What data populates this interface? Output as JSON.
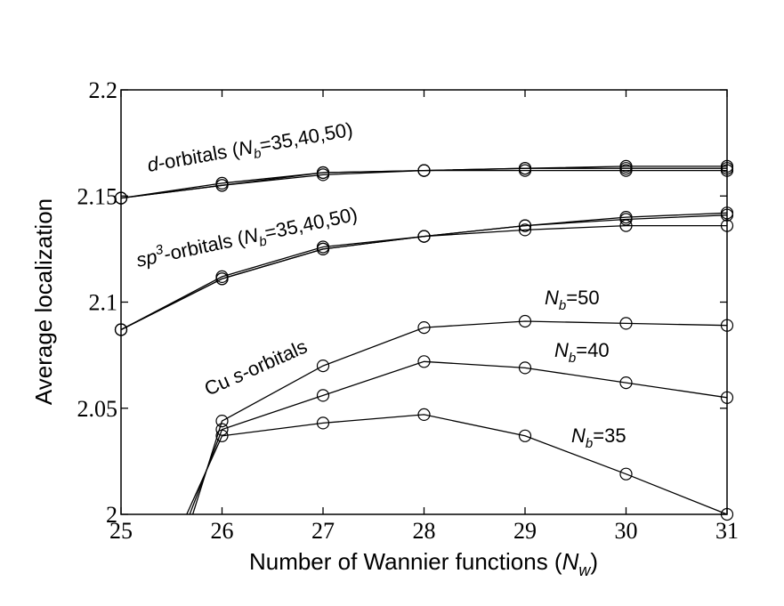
{
  "chart_data": {
    "type": "line",
    "xlabel": {
      "main": "Number of Wannier functions (",
      "var": "N",
      "sub": "w",
      "close": ")"
    },
    "ylabel": "Average localization",
    "xlim": [
      25,
      31
    ],
    "ylim": [
      2.0,
      2.2
    ],
    "xticks": [
      25,
      26,
      27,
      28,
      29,
      30,
      31
    ],
    "yticks": [
      2.0,
      2.05,
      2.1,
      2.15,
      2.2
    ],
    "xtick_labels": [
      "25",
      "26",
      "27",
      "28",
      "29",
      "30",
      "31"
    ],
    "ytick_labels": [
      "2",
      "2.05",
      "2.1",
      "2.15",
      "2.2"
    ],
    "marker": "open-circle",
    "grid": false,
    "series": [
      {
        "x": [
          25,
          26,
          27,
          28,
          29,
          30,
          31
        ],
        "y": [
          2.149,
          2.156,
          2.161,
          2.162,
          2.162,
          2.162,
          2.162
        ]
      },
      {
        "x": [
          25,
          26,
          27,
          28,
          29,
          30,
          31
        ],
        "y": [
          2.149,
          2.155,
          2.16,
          2.162,
          2.163,
          2.163,
          2.163
        ]
      },
      {
        "x": [
          25,
          26,
          27,
          28,
          29,
          30,
          31
        ],
        "y": [
          2.149,
          2.155,
          2.161,
          2.162,
          2.163,
          2.164,
          2.164
        ]
      },
      {
        "x": [
          25,
          26,
          27,
          28,
          29,
          30,
          31
        ],
        "y": [
          2.087,
          2.111,
          2.125,
          2.131,
          2.134,
          2.136,
          2.136
        ]
      },
      {
        "x": [
          25,
          26,
          27,
          28,
          29,
          30,
          31
        ],
        "y": [
          2.087,
          2.112,
          2.126,
          2.131,
          2.136,
          2.139,
          2.141
        ]
      },
      {
        "x": [
          25,
          26,
          27,
          28,
          29,
          30,
          31
        ],
        "y": [
          2.087,
          2.111,
          2.125,
          2.131,
          2.136,
          2.14,
          2.142
        ]
      },
      {
        "x": [
          25.65,
          26,
          27,
          28,
          29,
          30,
          31
        ],
        "y": [
          2.0,
          2.037,
          2.043,
          2.047,
          2.037,
          2.019,
          2.0
        ]
      },
      {
        "x": [
          25.68,
          26,
          27,
          28,
          29,
          30,
          31
        ],
        "y": [
          2.0,
          2.04,
          2.056,
          2.072,
          2.069,
          2.062,
          2.055
        ]
      },
      {
        "x": [
          25.71,
          26,
          27,
          28,
          29,
          30,
          31
        ],
        "y": [
          2.0,
          2.044,
          2.07,
          2.088,
          2.091,
          2.09,
          2.089
        ]
      }
    ],
    "annotations": [
      {
        "parts": [
          {
            "t": "d",
            "style": "italic"
          },
          {
            "t": "-orbitals ("
          },
          {
            "t": "N",
            "style": "italic"
          },
          {
            "t": "b",
            "style": "sub"
          },
          {
            "t": "=35,40,50)"
          }
        ]
      },
      {
        "parts": [
          {
            "t": "sp",
            "style": "italic"
          },
          {
            "t": "3",
            "style": "sup-italic"
          },
          {
            "t": "-orbitals ("
          },
          {
            "t": "N",
            "style": "italic"
          },
          {
            "t": "b",
            "style": "sub"
          },
          {
            "t": "=35,40,50)"
          }
        ]
      },
      {
        "parts": [
          {
            "t": "Cu "
          },
          {
            "t": "s",
            "style": "italic"
          },
          {
            "t": "-orbitals"
          }
        ]
      },
      {
        "parts": [
          {
            "t": "N",
            "style": "italic"
          },
          {
            "t": "b",
            "style": "sub"
          },
          {
            "t": "=50"
          }
        ]
      },
      {
        "parts": [
          {
            "t": "N",
            "style": "italic"
          },
          {
            "t": "b",
            "style": "sub"
          },
          {
            "t": "=40"
          }
        ]
      },
      {
        "parts": [
          {
            "t": "N",
            "style": "italic"
          },
          {
            "t": "b",
            "style": "sub"
          },
          {
            "t": "=35"
          }
        ]
      }
    ]
  }
}
